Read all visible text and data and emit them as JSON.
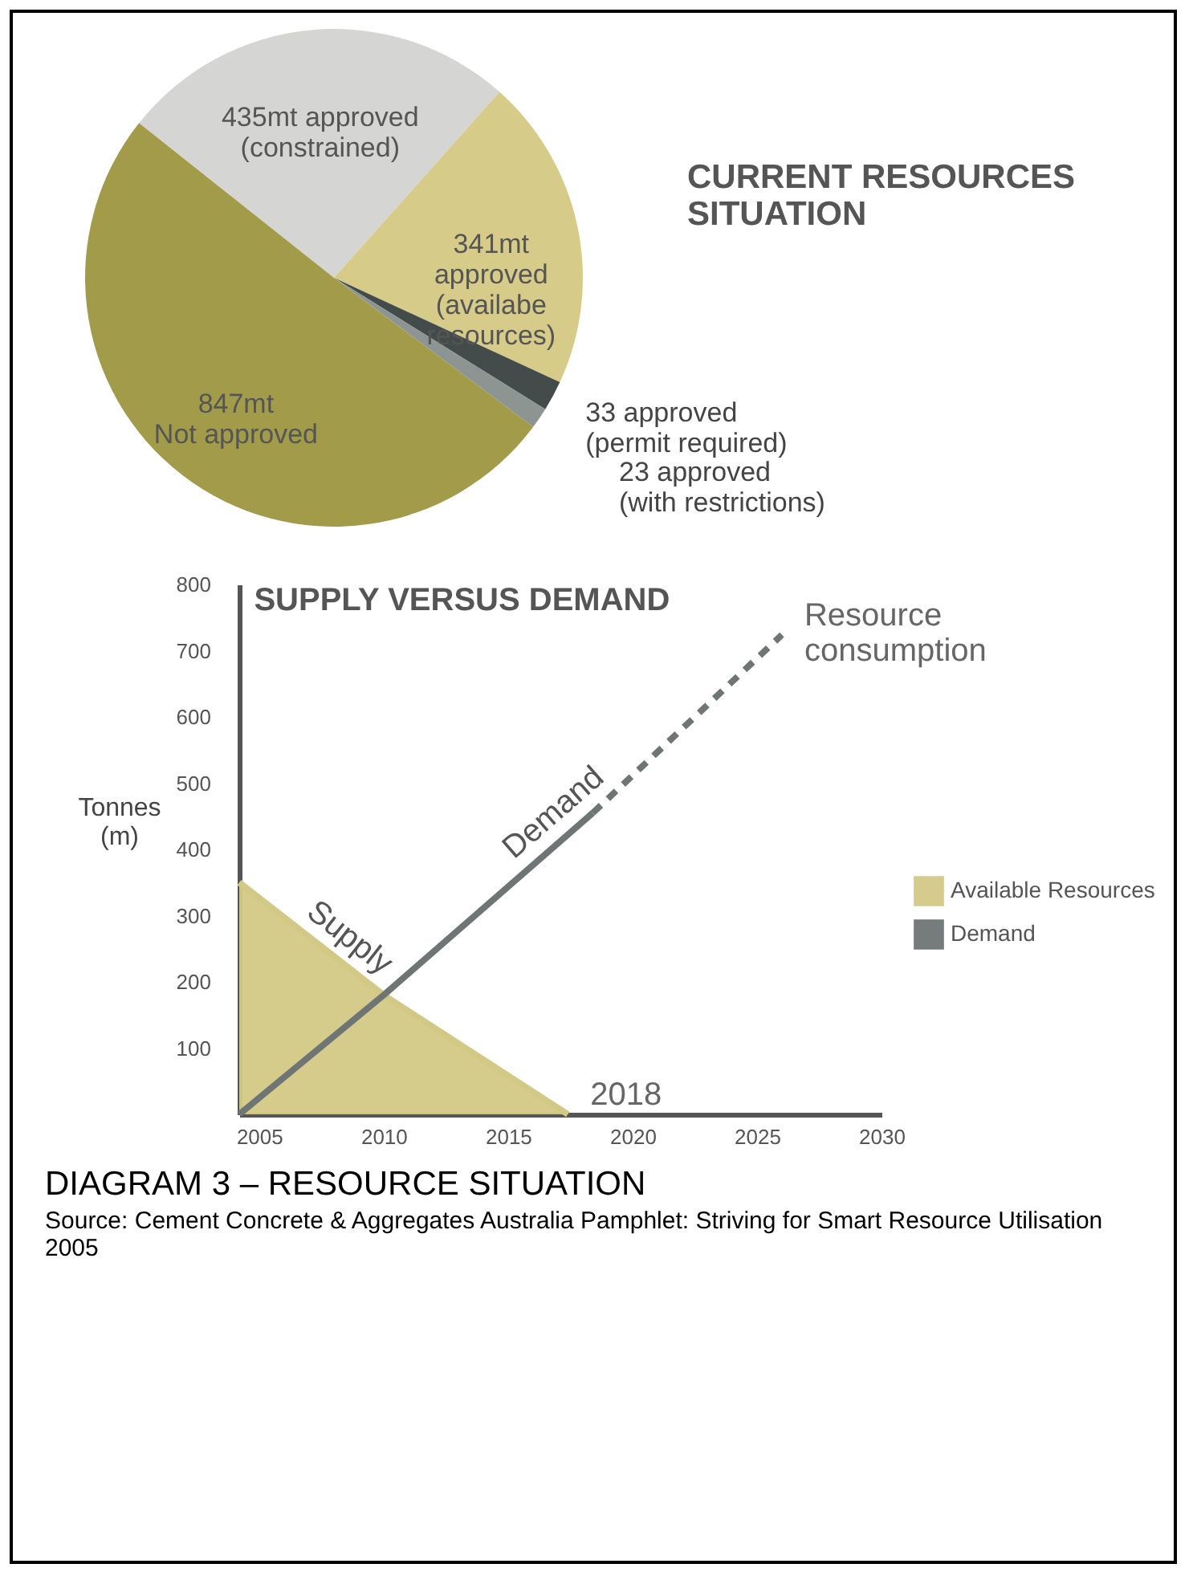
{
  "chart_data": [
    {
      "type": "pie",
      "title": "CURRENT RESOURCES SITUATION",
      "categories": [
        "435mt approved\n(constrained)",
        "341mt\napproved\n(availabe\nresources)",
        "33 approved\n(permit required)",
        "23 approved\n(with restrictions)",
        "847mt\nNot approved"
      ],
      "values": [
        435,
        341,
        33,
        23,
        847
      ],
      "colors": [
        "#d5d5d3",
        "#d6cb88",
        "#434c4a",
        "#8d9593",
        "#a19b4a"
      ]
    },
    {
      "type": "line",
      "title": "SUPPLY VERSUS DEMAND",
      "ylabel": "Tonnes (m)",
      "xlim": [
        2004.2,
        2030
      ],
      "xticks": [
        2005,
        2010,
        2015,
        2020,
        2025,
        2030
      ],
      "ylim": [
        0,
        800
      ],
      "yticks": [
        100,
        200,
        300,
        400,
        500,
        600,
        700,
        800
      ],
      "legend": "right",
      "series": [
        {
          "name": "Available Resources",
          "type": "area",
          "color": "#d3c986",
          "x": [
            2004.2,
            2010,
            2017.4
          ],
          "values": [
            350,
            180,
            0
          ]
        },
        {
          "name": "Demand",
          "color": "#6f7574",
          "x": [
            2004.2,
            2010,
            2018.4
          ],
          "values": [
            0,
            180,
            455
          ]
        },
        {
          "color": "#6f7574",
          "line_style": "dashed",
          "x": [
            2018.4,
            2026
          ],
          "values": [
            455,
            724
          ]
        }
      ],
      "annotations": [
        {
          "text": "Supply",
          "x": 2008,
          "y": 236
        },
        {
          "text": "Demand",
          "x": 2017.5,
          "y": 426
        },
        {
          "text": "2018",
          "x": 2017.4,
          "y": 0
        },
        {
          "text": "Resource consumption",
          "x": 2026,
          "y": 724
        },
        "DIAGRAM 3 – RESOURCE SITUATION",
        "Source: Cement Concrete & Aggregates Australia Pamphlet: Striving for Smart Resource Utilisation 2005"
      ]
    }
  ]
}
